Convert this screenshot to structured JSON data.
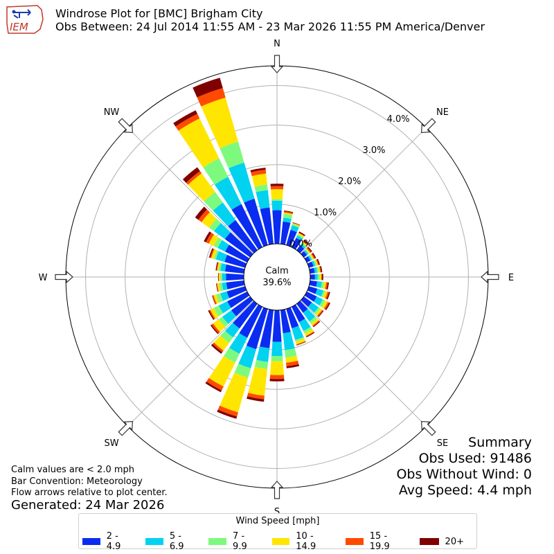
{
  "header": {
    "title_line1": "Windrose Plot for [BMC] Brigham City",
    "title_line2": "Obs Between: 24 Jul 2014 11:55 AM - 23 Mar 2026 11:55 PM America/Denver",
    "logo_text": "IEM"
  },
  "notes": {
    "line1": "Calm values are < 2.0 mph",
    "line2": "Bar Convention: Meteorology",
    "line3": "Flow arrows relative to plot center."
  },
  "generated": "Generated: 24 Mar 2026",
  "summary": {
    "title": "Summary",
    "obs_used": "Obs Used: 91486",
    "obs_without_wind": "Obs Without Wind: 0",
    "avg_speed": "Avg Speed: 4.4 mph"
  },
  "legend": {
    "title": "Wind Speed [mph]",
    "items": [
      {
        "label": "2 - 4.9",
        "color": "#0a2cf0"
      },
      {
        "label": "5 - 6.9",
        "color": "#00d2f0"
      },
      {
        "label": "7 - 9.9",
        "color": "#7dfa7d"
      },
      {
        "label": "10 - 14.9",
        "color": "#ffe600"
      },
      {
        "label": "15 - 19.9",
        "color": "#ff4a00"
      },
      {
        "label": "20+",
        "color": "#800000"
      }
    ]
  },
  "chart_data": {
    "type": "windrose",
    "calm_label": "Calm",
    "calm_value": "39.6%",
    "calm_percent": 39.6,
    "direction_labels": [
      "N",
      "NE",
      "E",
      "SE",
      "S",
      "SW",
      "W",
      "NW"
    ],
    "radial_tick_labels": [
      "0.0%",
      "1.0%",
      "2.0%",
      "3.0%",
      "4.0%"
    ],
    "radial_ticks": [
      0,
      1,
      2,
      3,
      4
    ],
    "radial_max": 4.5,
    "speed_bins": [
      "2 - 4.9",
      "5 - 6.9",
      "7 - 9.9",
      "10 - 14.9",
      "15 - 19.9",
      "20+"
    ],
    "bin_colors": [
      "#0a2cf0",
      "#00d2f0",
      "#7dfa7d",
      "#ffe600",
      "#ff4a00",
      "#800000"
    ],
    "directions_deg": [
      0,
      10,
      20,
      30,
      40,
      50,
      60,
      70,
      80,
      90,
      100,
      110,
      120,
      130,
      140,
      150,
      160,
      170,
      180,
      190,
      200,
      210,
      220,
      230,
      240,
      250,
      260,
      270,
      280,
      290,
      300,
      310,
      320,
      330,
      340,
      350
    ],
    "cumulative_percent": [
      [
        0.85,
        1.09,
        1.13,
        1.38,
        1.46,
        1.52
      ],
      [
        0.57,
        0.67,
        0.77,
        0.8,
        0.83,
        0.85
      ],
      [
        0.4,
        0.52,
        0.56,
        0.58,
        0.59,
        0.6
      ],
      [
        0.26,
        0.33,
        0.36,
        0.4,
        0.41,
        0.44
      ],
      [
        0.15,
        0.2,
        0.24,
        0.27,
        0.3,
        0.33
      ],
      [
        0.1,
        0.14,
        0.17,
        0.2,
        0.23,
        0.26
      ],
      [
        0.1,
        0.14,
        0.17,
        0.2,
        0.23,
        0.26
      ],
      [
        0.12,
        0.17,
        0.2,
        0.24,
        0.26,
        0.29
      ],
      [
        0.12,
        0.18,
        0.22,
        0.26,
        0.28,
        0.31
      ],
      [
        0.12,
        0.19,
        0.24,
        0.28,
        0.3,
        0.33
      ],
      [
        0.18,
        0.3,
        0.36,
        0.41,
        0.45,
        0.48
      ],
      [
        0.22,
        0.38,
        0.43,
        0.49,
        0.53,
        0.56
      ],
      [
        0.28,
        0.45,
        0.52,
        0.59,
        0.63,
        0.66
      ],
      [
        0.25,
        0.46,
        0.51,
        0.57,
        0.6,
        0.62
      ],
      [
        0.28,
        0.55,
        0.62,
        0.68,
        0.71,
        0.73
      ],
      [
        0.43,
        0.68,
        0.75,
        0.82,
        0.84,
        0.86
      ],
      [
        0.51,
        0.82,
        0.86,
        0.93,
        0.95,
        0.96
      ],
      [
        0.59,
        1.02,
        1.21,
        1.34,
        1.43,
        1.48
      ],
      [
        0.8,
        1.16,
        1.29,
        1.64,
        1.74,
        1.8
      ],
      [
        0.97,
        1.32,
        1.5,
        2.18,
        2.27,
        2.33
      ],
      [
        1.06,
        1.56,
        1.81,
        2.72,
        2.83,
        2.89
      ],
      [
        0.87,
        1.32,
        1.57,
        2.24,
        2.35,
        2.4
      ],
      [
        0.77,
        1.05,
        1.22,
        1.46,
        1.51,
        1.56
      ],
      [
        0.59,
        0.87,
        0.98,
        1.16,
        1.21,
        1.24
      ],
      [
        0.56,
        0.8,
        0.94,
        1.04,
        1.07,
        1.1
      ],
      [
        0.48,
        0.65,
        0.76,
        0.83,
        0.86,
        0.87
      ],
      [
        0.45,
        0.56,
        0.63,
        0.68,
        0.7,
        0.71
      ],
      [
        0.45,
        0.55,
        0.59,
        0.63,
        0.64,
        0.65
      ],
      [
        0.48,
        0.6,
        0.64,
        0.68,
        0.7,
        0.72
      ],
      [
        0.54,
        0.77,
        0.82,
        0.89,
        0.92,
        0.95
      ],
      [
        0.62,
        0.83,
        0.94,
        1.08,
        1.16,
        1.22
      ],
      [
        0.79,
        1.13,
        1.28,
        1.52,
        1.62,
        1.72
      ],
      [
        0.94,
        1.49,
        1.82,
        2.4,
        2.47,
        2.59
      ],
      [
        1.21,
        1.98,
        2.5,
        3.62,
        3.75,
        3.85
      ],
      [
        1.22,
        2.17,
        2.72,
        3.88,
        4.13,
        4.4
      ],
      [
        0.93,
        1.37,
        1.51,
        1.79,
        1.89,
        1.94
      ]
    ]
  }
}
